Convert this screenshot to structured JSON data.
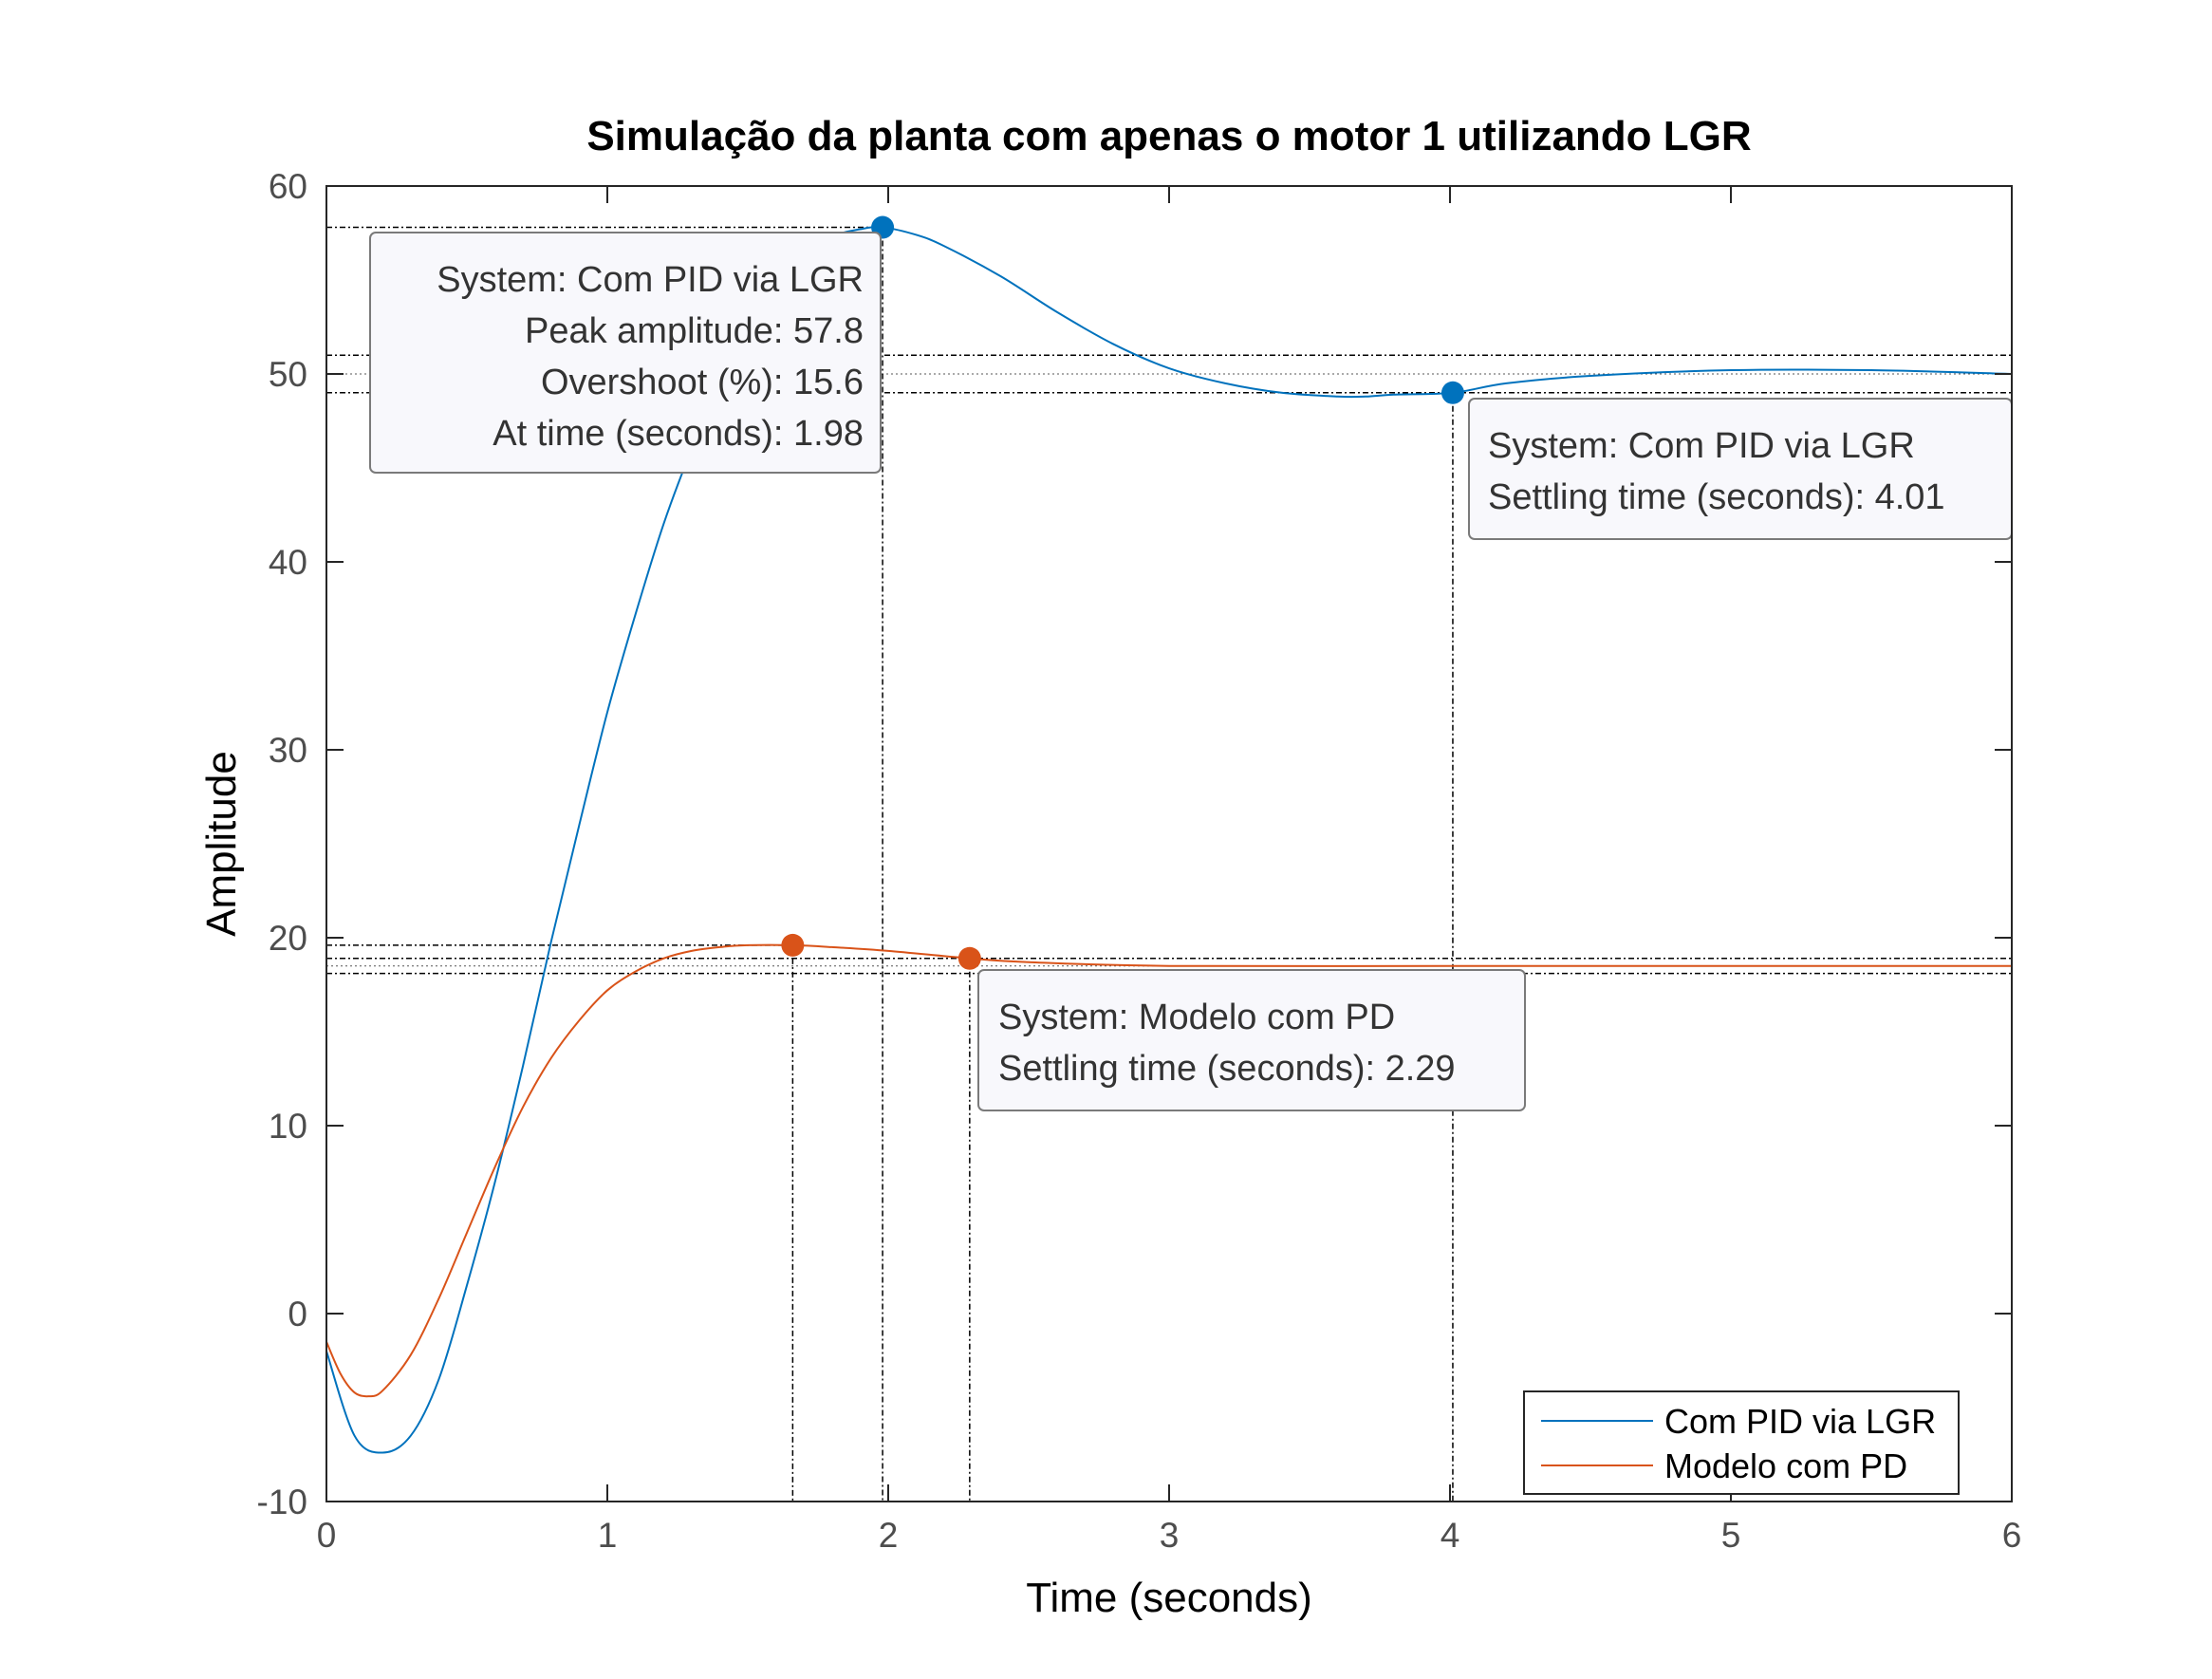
{
  "chart_data": {
    "type": "line",
    "title": "Simulação da planta com apenas o motor 1 utilizando LGR",
    "xlabel": "Time (seconds)",
    "ylabel": "Amplitude",
    "xlim": [
      0,
      6
    ],
    "ylim": [
      -10,
      60
    ],
    "xticks": [
      "0",
      "1",
      "2",
      "3",
      "4",
      "5",
      "6"
    ],
    "yticks": [
      "-10",
      "0",
      "10",
      "20",
      "30",
      "40",
      "50",
      "60"
    ],
    "grid": false,
    "legend": {
      "placement": "bottom-right",
      "entries": [
        "Com PID via LGR",
        "Modelo com PD"
      ]
    },
    "series": [
      {
        "name": "Com PID via LGR",
        "color": "#0072BD",
        "x": [
          0,
          0.1,
          0.2,
          0.3,
          0.4,
          0.5,
          0.6,
          0.7,
          0.8,
          0.9,
          1.0,
          1.1,
          1.2,
          1.3,
          1.4,
          1.5,
          1.6,
          1.7,
          1.8,
          1.9,
          1.98,
          2.1,
          2.2,
          2.4,
          2.6,
          2.8,
          3.0,
          3.2,
          3.4,
          3.6,
          3.7,
          3.8,
          4.01,
          4.2,
          4.5,
          5.0,
          5.5,
          6.0
        ],
        "y": [
          -2,
          -6.5,
          -7.4,
          -6.5,
          -3.5,
          1.5,
          7.0,
          13.2,
          19.8,
          26.0,
          32.0,
          37.2,
          42.0,
          46.0,
          49.5,
          52.4,
          54.6,
          56.2,
          57.3,
          57.7,
          57.8,
          57.4,
          56.8,
          55.2,
          53.3,
          51.6,
          50.3,
          49.5,
          49.0,
          48.8,
          48.8,
          48.9,
          49.0,
          49.5,
          49.9,
          50.2,
          50.2,
          50.0
        ]
      },
      {
        "name": "Modelo com PD",
        "color": "#D95319",
        "x": [
          0,
          0.05,
          0.1,
          0.15,
          0.2,
          0.3,
          0.4,
          0.5,
          0.6,
          0.7,
          0.8,
          0.9,
          1.0,
          1.1,
          1.2,
          1.3,
          1.4,
          1.5,
          1.66,
          1.8,
          2.0,
          2.29,
          2.5,
          3.0,
          4.0,
          5.0,
          6.0
        ],
        "y": [
          -1.5,
          -3.2,
          -4.2,
          -4.4,
          -4.1,
          -2.2,
          0.8,
          4.3,
          7.8,
          11.0,
          13.6,
          15.6,
          17.2,
          18.2,
          18.9,
          19.3,
          19.5,
          19.6,
          19.6,
          19.5,
          19.3,
          18.9,
          18.7,
          18.5,
          18.5,
          18.5,
          18.5
        ]
      }
    ],
    "reference_lines": {
      "pid_band": [
        49.0,
        50.0,
        51.0
      ],
      "pd_band": [
        18.1,
        18.5,
        18.9
      ]
    },
    "annotations": [
      {
        "series": "Com PID via LGR",
        "x": 1.98,
        "y": 57.8,
        "lines": [
          "System: Com PID via LGR",
          "Peak amplitude: 57.8",
          "Overshoot (%): 15.6",
          "At time (seconds): 1.98"
        ]
      },
      {
        "series": "Com PID via LGR",
        "x": 4.01,
        "y": 49.0,
        "lines": [
          "System: Com PID via LGR",
          "Settling time (seconds): 4.01"
        ]
      },
      {
        "series": "Modelo com PD",
        "x": 1.66,
        "y": 19.6,
        "lines": []
      },
      {
        "series": "Modelo com PD",
        "x": 2.29,
        "y": 18.9,
        "lines": [
          "System: Modelo com PD",
          "Settling time (seconds): 2.29"
        ]
      }
    ]
  }
}
